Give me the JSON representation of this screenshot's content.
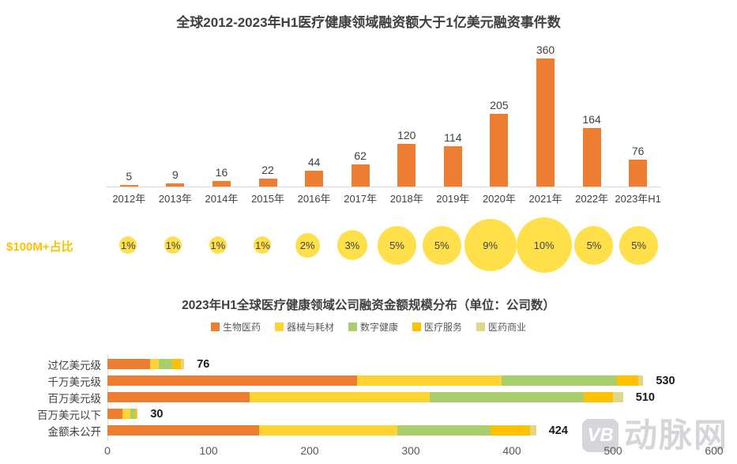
{
  "colors": {
    "bar_orange": "#ED7D31",
    "bubble_yellow": "#FFE04A",
    "bubble_row_label_color": "#FFC000",
    "title_color": "#3F3F3F",
    "axis_gray": "#D9D9D9",
    "tick_color": "#595959",
    "watermark_gray": "#D6D6DA"
  },
  "chart_data": [
    {
      "type": "bar",
      "orientation": "vertical",
      "title": "全球2012-2023年H1医疗健康领域融资额大于1亿美元融资事件数",
      "categories": [
        "2012年",
        "2013年",
        "2014年",
        "2015年",
        "2016年",
        "2017年",
        "2018年",
        "2019年",
        "2020年",
        "2021年",
        "2022年",
        "2023年H1"
      ],
      "values": [
        5,
        9,
        16,
        22,
        44,
        62,
        120,
        114,
        205,
        360,
        164,
        76
      ],
      "bar_color": "#ED7D31",
      "ylim": [
        0,
        400
      ],
      "grid": false,
      "annotation_row": {
        "label": "$100M+占比",
        "values_pct": [
          1,
          1,
          1,
          1,
          2,
          3,
          5,
          5,
          9,
          10,
          5,
          5
        ],
        "bubble_color": "#FFE04A"
      }
    },
    {
      "type": "bar",
      "orientation": "horizontal",
      "stacked": true,
      "title": "2023年H1全球医疗健康领域公司融资金额规模分布（单位：公司数）",
      "categories": [
        "过亿美元级",
        "千万美元级",
        "百万美元级",
        "百万美元以下",
        "金额未公开"
      ],
      "series": [
        {
          "name": "生物医药",
          "color": "#ED7D31",
          "values": [
            42,
            247,
            141,
            15,
            150
          ]
        },
        {
          "name": "器械与耗材",
          "color": "#FFD332",
          "values": [
            9,
            143,
            178,
            8,
            137
          ]
        },
        {
          "name": "数字健康",
          "color": "#A9CE6C",
          "values": [
            13,
            114,
            152,
            4,
            92
          ]
        },
        {
          "name": "医疗服务",
          "color": "#FFC000",
          "values": [
            9,
            21,
            29,
            2,
            39
          ]
        },
        {
          "name": "医药商业",
          "color": "#DFD786",
          "values": [
            3,
            5,
            10,
            1,
            6
          ]
        }
      ],
      "totals": [
        76,
        530,
        510,
        30,
        424
      ],
      "xlim": [
        0,
        600
      ],
      "x_ticks": [
        0,
        100,
        200,
        300,
        400,
        500,
        600
      ],
      "legend_position": "top",
      "grid": false
    }
  ],
  "watermark": {
    "logo_text": "VB",
    "brand_text": "动脉网"
  }
}
